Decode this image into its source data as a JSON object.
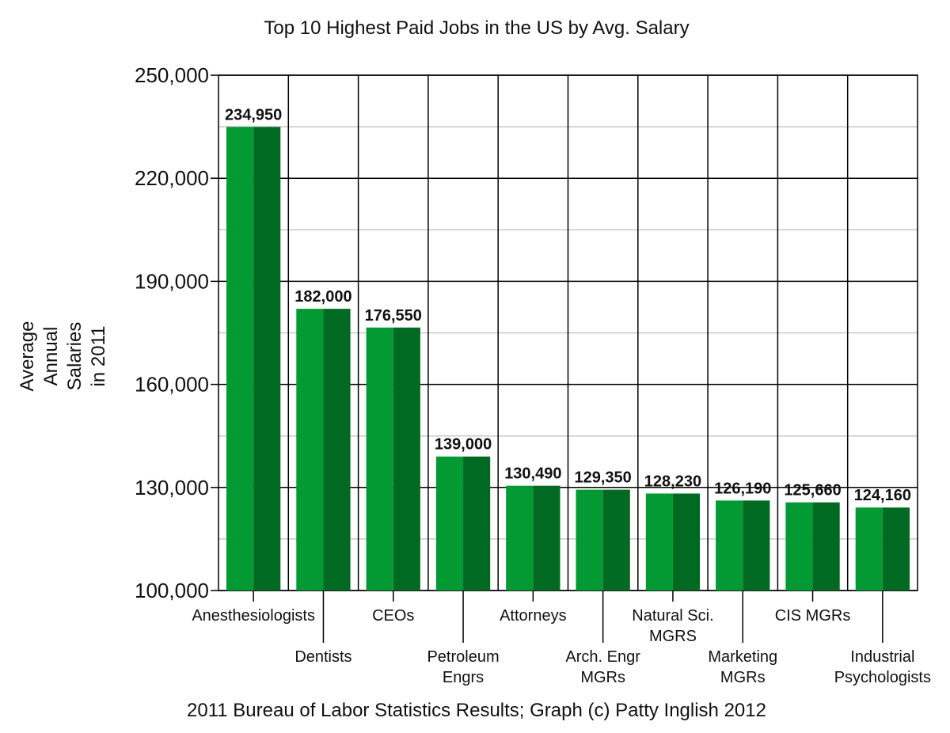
{
  "chart_data": {
    "type": "bar",
    "title": "Top 10 Highest Paid Jobs in the US by Avg. Salary",
    "ylabel_lines": [
      "Average",
      "Annual",
      "Salaries",
      "in 2011"
    ],
    "xlabel": "",
    "footer": "2011 Bureau of Labor Statistics Results; Graph (c) Patty Inglish 2012",
    "ylim": [
      100000,
      250000
    ],
    "yticks": [
      100000,
      130000,
      160000,
      190000,
      220000,
      250000
    ],
    "ytick_labels": [
      "100,000",
      "130,000",
      "160,000",
      "190,000",
      "220,000",
      "250,000"
    ],
    "grid": true,
    "categories": [
      {
        "lines": [
          "Anesthesiologists"
        ],
        "row": "upper"
      },
      {
        "lines": [
          "Dentists"
        ],
        "row": "lower"
      },
      {
        "lines": [
          "CEOs"
        ],
        "row": "upper"
      },
      {
        "lines": [
          "Petroleum",
          "Engrs"
        ],
        "row": "lower"
      },
      {
        "lines": [
          "Attorneys"
        ],
        "row": "upper"
      },
      {
        "lines": [
          "Arch.  Engr",
          "MGRs"
        ],
        "row": "lower"
      },
      {
        "lines": [
          "Natural Sci.",
          "MGRS"
        ],
        "row": "upper"
      },
      {
        "lines": [
          "Marketing",
          "MGRs"
        ],
        "row": "lower"
      },
      {
        "lines": [
          "CIS MGRs"
        ],
        "row": "upper"
      },
      {
        "lines": [
          "Industrial",
          "Psychologists"
        ],
        "row": "lower"
      }
    ],
    "values": [
      234950,
      182000,
      176550,
      139000,
      130490,
      129350,
      128230,
      126190,
      125660,
      124160
    ],
    "data_labels": [
      "234,950",
      "182,000",
      "176,550",
      "139,000",
      "130,490",
      "129,350",
      "128,230",
      "126,190",
      "125,660",
      "124,160"
    ],
    "colors": {
      "bar_light": "#039933",
      "bar_dark": "#016a22",
      "grid_major": "#000000",
      "grid_minor": "#c8c8c8"
    }
  }
}
